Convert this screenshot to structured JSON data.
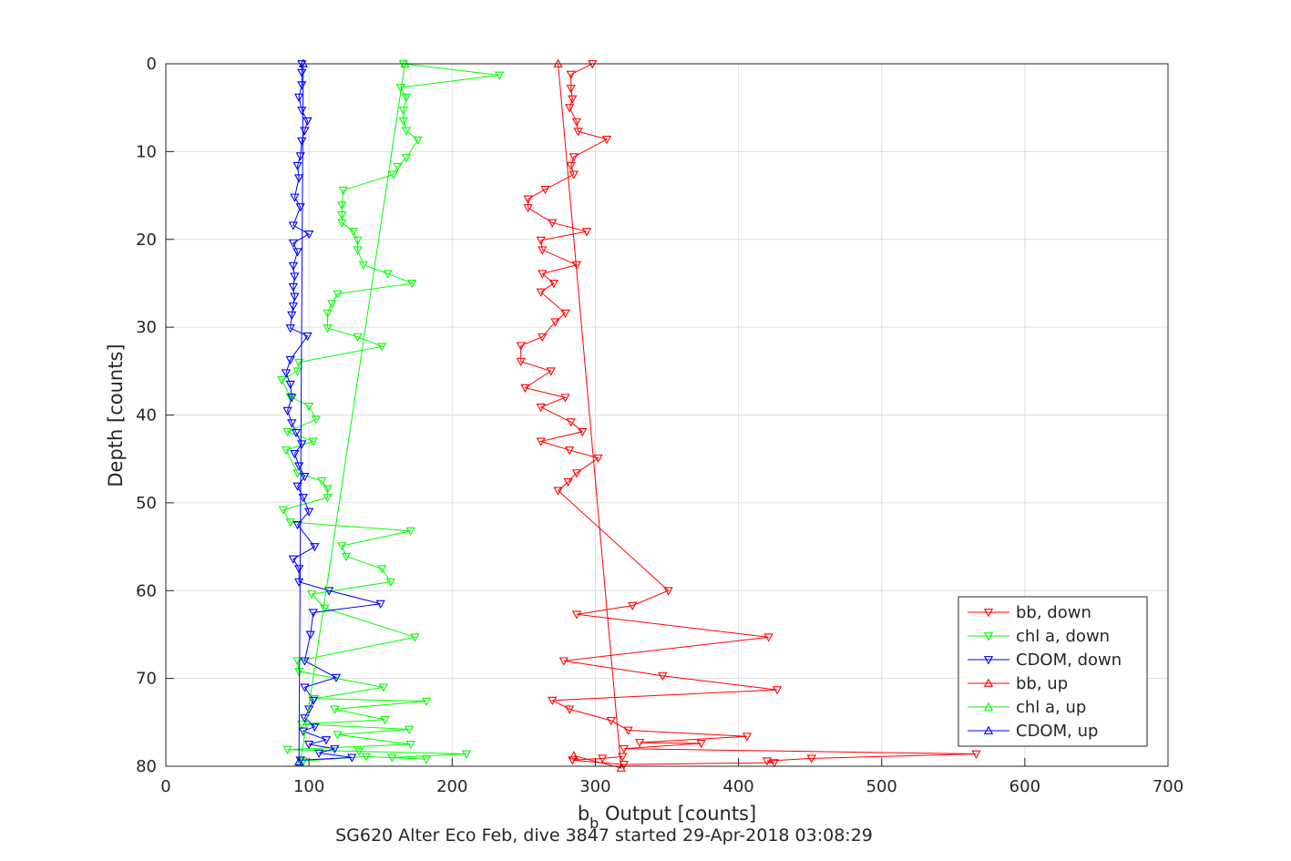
{
  "chart_data": {
    "type": "line",
    "title": "",
    "xlabel": "b",
    "xlabel_sub": "b",
    "xlabel_rest": " Output [counts]",
    "ylabel": "Depth [counts]",
    "caption": "SG620 Alter Eco Feb, dive 3847 started 29-Apr-2018 03:08:29",
    "xlim": [
      0,
      700
    ],
    "ylim": [
      0,
      80
    ],
    "y_reversed": true,
    "grid": true,
    "legend_position": "bottom-right",
    "x_ticks": [
      "0",
      "100",
      "200",
      "300",
      "400",
      "500",
      "600",
      "700"
    ],
    "y_ticks": [
      "0",
      "10",
      "20",
      "30",
      "40",
      "50",
      "60",
      "70",
      "80"
    ],
    "x_tick_values": [
      0,
      100,
      200,
      300,
      400,
      500,
      600,
      700
    ],
    "y_tick_values": [
      0,
      10,
      20,
      30,
      40,
      50,
      60,
      70,
      80
    ],
    "series": [
      {
        "name": "bb, down",
        "color": "#ff0000",
        "marker": "triangle-down",
        "points": [
          [
            298,
            0
          ],
          [
            283,
            1.2
          ],
          [
            283,
            2.8
          ],
          [
            284,
            4.0
          ],
          [
            282,
            5.0
          ],
          [
            287,
            6.6
          ],
          [
            288,
            7.7
          ],
          [
            308,
            8.6
          ],
          [
            285,
            10.6
          ],
          [
            283,
            11.6
          ],
          [
            285,
            12.6
          ],
          [
            265,
            14.3
          ],
          [
            253,
            15.4
          ],
          [
            253,
            16.4
          ],
          [
            270,
            18.1
          ],
          [
            294,
            19.1
          ],
          [
            262,
            20.1
          ],
          [
            263,
            21.2
          ],
          [
            287,
            22.9
          ],
          [
            263,
            23.9
          ],
          [
            271,
            25.0
          ],
          [
            262,
            26.0
          ],
          [
            279,
            28.4
          ],
          [
            272,
            29.4
          ],
          [
            263,
            31.1
          ],
          [
            248,
            32.1
          ],
          [
            248,
            33.9
          ],
          [
            269,
            35.0
          ],
          [
            251,
            36.9
          ],
          [
            279,
            38.0
          ],
          [
            262,
            39.1
          ],
          [
            283,
            40.8
          ],
          [
            291,
            41.9
          ],
          [
            262,
            43.0
          ],
          [
            282,
            44.0
          ],
          [
            302,
            44.9
          ],
          [
            287,
            46.6
          ],
          [
            281,
            47.6
          ],
          [
            274,
            48.6
          ],
          [
            351,
            60.0
          ],
          [
            326,
            61.7
          ],
          [
            287,
            62.7
          ],
          [
            421,
            65.3
          ],
          [
            278,
            68.0
          ],
          [
            347,
            69.7
          ],
          [
            427,
            71.3
          ],
          [
            270,
            72.5
          ],
          [
            282,
            73.5
          ],
          [
            311,
            74.8
          ],
          [
            323,
            75.9
          ],
          [
            406,
            76.6
          ],
          [
            331,
            77.3
          ],
          [
            374,
            77.4
          ],
          [
            320,
            78.0
          ],
          [
            566,
            78.6
          ],
          [
            451,
            79.1
          ],
          [
            420,
            79.4
          ],
          [
            425,
            79.6
          ],
          [
            320,
            79.8
          ],
          [
            284,
            79.3
          ],
          [
            305,
            79.1
          ],
          [
            319,
            78.9
          ]
        ]
      },
      {
        "name": "chl a, down",
        "color": "#00ff00",
        "marker": "triangle-down",
        "points": [
          [
            166,
            0
          ],
          [
            233,
            1.3
          ],
          [
            164,
            2.7
          ],
          [
            168,
            3.8
          ],
          [
            166,
            5.3
          ],
          [
            166,
            6.5
          ],
          [
            168,
            7.6
          ],
          [
            176,
            8.7
          ],
          [
            168,
            10.7
          ],
          [
            162,
            11.7
          ],
          [
            159,
            12.6
          ],
          [
            124,
            14.4
          ],
          [
            123,
            16.1
          ],
          [
            123,
            17.2
          ],
          [
            123,
            18.1
          ],
          [
            131,
            19.1
          ],
          [
            134,
            20.1
          ],
          [
            134,
            21.2
          ],
          [
            138,
            22.9
          ],
          [
            155,
            23.9
          ],
          [
            172,
            25.0
          ],
          [
            120,
            26.2
          ],
          [
            116,
            27.3
          ],
          [
            113,
            28.4
          ],
          [
            113,
            30.1
          ],
          [
            134,
            31.1
          ],
          [
            151,
            32.2
          ],
          [
            93,
            34.0
          ],
          [
            92,
            35.0
          ],
          [
            81,
            36.0
          ],
          [
            87,
            37.9
          ],
          [
            100,
            39.0
          ],
          [
            105,
            40.5
          ],
          [
            85,
            41.9
          ],
          [
            103,
            43.0
          ],
          [
            84,
            44.0
          ],
          [
            92,
            46.6
          ],
          [
            109,
            47.5
          ],
          [
            113,
            48.4
          ],
          [
            113,
            49.4
          ],
          [
            82,
            50.8
          ],
          [
            87,
            52.2
          ],
          [
            171,
            53.2
          ],
          [
            123,
            54.9
          ],
          [
            126,
            56.1
          ],
          [
            151,
            57.5
          ],
          [
            157,
            59.0
          ],
          [
            102,
            60.4
          ],
          [
            111,
            62.0
          ],
          [
            174,
            65.3
          ],
          [
            92,
            68.0
          ],
          [
            93,
            69.2
          ],
          [
            152,
            71.0
          ],
          [
            104,
            72.3
          ],
          [
            182,
            72.6
          ],
          [
            118,
            73.5
          ],
          [
            153,
            74.7
          ],
          [
            95,
            75.2
          ],
          [
            170,
            75.8
          ],
          [
            120,
            76.4
          ],
          [
            171,
            77.5
          ],
          [
            85,
            78.1
          ],
          [
            135,
            78.3
          ],
          [
            210,
            78.6
          ],
          [
            158,
            79.0
          ],
          [
            182,
            79.2
          ],
          [
            140,
            78.9
          ],
          [
            96,
            79.4
          ]
        ]
      },
      {
        "name": "CDOM, down",
        "color": "#0000ff",
        "marker": "triangle-down",
        "points": [
          [
            95,
            0
          ],
          [
            95,
            1.0
          ],
          [
            95,
            2.4
          ],
          [
            93,
            3.8
          ],
          [
            95,
            5.3
          ],
          [
            99,
            6.5
          ],
          [
            97,
            7.6
          ],
          [
            95,
            8.8
          ],
          [
            94,
            10.5
          ],
          [
            92,
            11.6
          ],
          [
            93,
            13.0
          ],
          [
            90,
            15.2
          ],
          [
            94,
            16.3
          ],
          [
            89,
            18.4
          ],
          [
            100,
            19.4
          ],
          [
            89,
            20.4
          ],
          [
            92,
            21.4
          ],
          [
            89,
            23.0
          ],
          [
            90,
            24.2
          ],
          [
            89,
            25.4
          ],
          [
            90,
            26.5
          ],
          [
            89,
            27.6
          ],
          [
            88,
            28.6
          ],
          [
            87,
            30.1
          ],
          [
            99,
            31.0
          ],
          [
            87,
            33.7
          ],
          [
            84,
            35.2
          ],
          [
            87,
            36.5
          ],
          [
            88,
            38.0
          ],
          [
            85,
            39.5
          ],
          [
            88,
            40.9
          ],
          [
            91,
            42.0
          ],
          [
            95,
            43.3
          ],
          [
            90,
            44.4
          ],
          [
            93,
            45.8
          ],
          [
            97,
            47.0
          ],
          [
            92,
            48.1
          ],
          [
            96,
            49.4
          ],
          [
            100,
            51.0
          ],
          [
            92,
            52.5
          ],
          [
            104,
            55.0
          ],
          [
            89,
            56.4
          ],
          [
            93,
            57.5
          ],
          [
            93,
            59.0
          ],
          [
            114,
            60.0
          ],
          [
            150,
            61.5
          ],
          [
            103,
            62.5
          ],
          [
            101,
            65.0
          ],
          [
            97,
            68.0
          ],
          [
            119,
            69.9
          ],
          [
            97,
            71.0
          ],
          [
            103,
            72.5
          ],
          [
            100,
            73.5
          ],
          [
            97,
            74.5
          ],
          [
            104,
            75.5
          ],
          [
            96,
            76.0
          ],
          [
            112,
            77.0
          ],
          [
            100,
            77.5
          ],
          [
            118,
            78.0
          ],
          [
            107,
            78.5
          ],
          [
            130,
            79.0
          ],
          [
            94,
            79.3
          ]
        ]
      },
      {
        "name": "bb, up",
        "color": "#ff0000",
        "marker": "triangle-up",
        "points": [
          [
            274,
            0
          ],
          [
            318,
            80.2
          ],
          [
            285,
            78.8
          ]
        ]
      },
      {
        "name": "chl a, up",
        "color": "#00ff00",
        "marker": "triangle-up",
        "points": [
          [
            167,
            0
          ],
          [
            94,
            79.6
          ]
        ]
      },
      {
        "name": "CDOM, up",
        "color": "#0000ff",
        "marker": "triangle-up",
        "points": [
          [
            96,
            0
          ],
          [
            93,
            79.5
          ]
        ]
      }
    ]
  }
}
